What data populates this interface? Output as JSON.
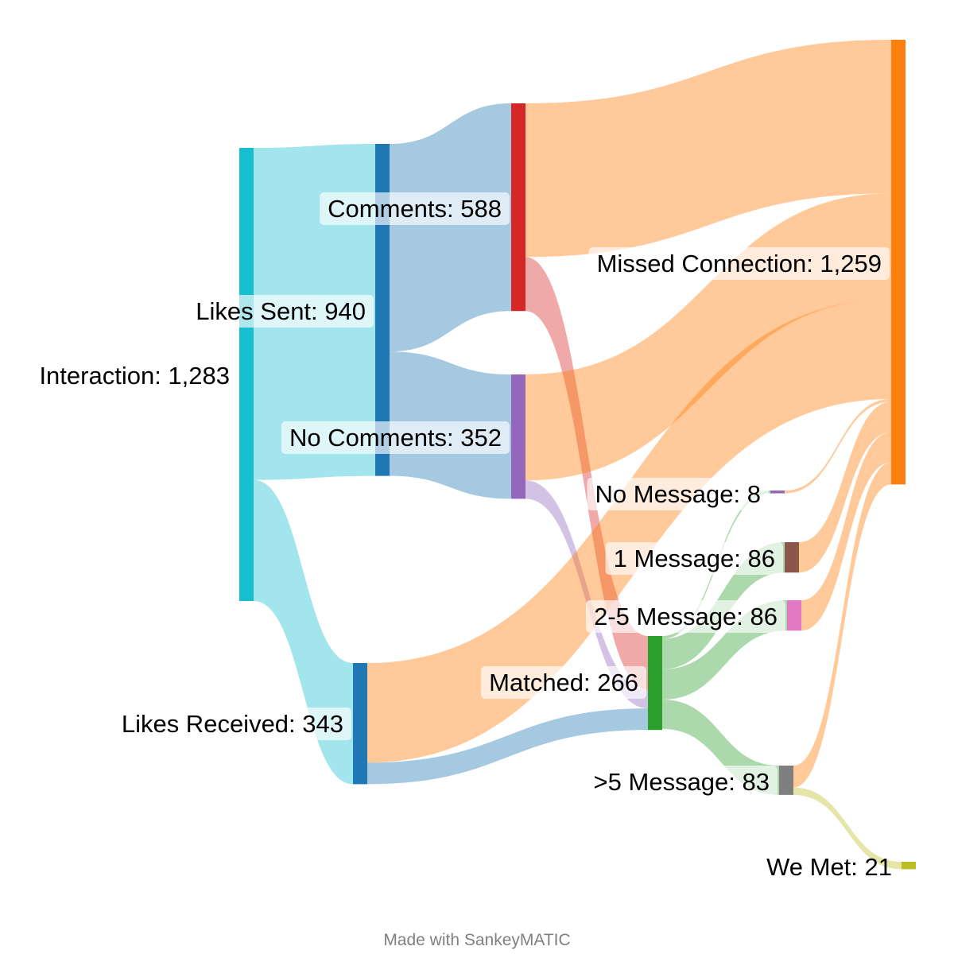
{
  "diagram": {
    "type": "sankey",
    "credit": "Made with SankeyMATIC",
    "nodes": [
      {
        "id": "interaction",
        "label": "Interaction: 1,283",
        "value": 1283,
        "color": "#17becf"
      },
      {
        "id": "likes_sent",
        "label": "Likes Sent: 940",
        "value": 940,
        "color": "#1f77b4"
      },
      {
        "id": "likes_received",
        "label": "Likes Received: 343",
        "value": 343,
        "color": "#1f77b4"
      },
      {
        "id": "comments",
        "label": "Comments: 588",
        "value": 588,
        "color": "#d62728"
      },
      {
        "id": "no_comments",
        "label": "No Comments: 352",
        "value": 352,
        "color": "#9467bd"
      },
      {
        "id": "matched",
        "label": "Matched: 266",
        "value": 266,
        "color": "#2ca02c"
      },
      {
        "id": "missed",
        "label": "Missed Connection: 1,259",
        "value": 1259,
        "color": "#ff7f0e"
      },
      {
        "id": "no_message",
        "label": "No Message: 8",
        "value": 8,
        "color": "#9467bd"
      },
      {
        "id": "one_message",
        "label": "1 Message: 86",
        "value": 86,
        "color": "#8c564b"
      },
      {
        "id": "two_five_message",
        "label": "2-5 Message: 86",
        "value": 86,
        "color": "#e377c2"
      },
      {
        "id": "gt5_message",
        "label": ">5 Message: 83",
        "value": 83,
        "color": "#7f7f7f"
      },
      {
        "id": "we_met",
        "label": "We Met: 21",
        "value": 21,
        "color": "#bcbd22"
      }
    ],
    "flows": [
      {
        "from": "interaction",
        "to": "likes_sent",
        "value": 940
      },
      {
        "from": "interaction",
        "to": "likes_received",
        "value": 343
      },
      {
        "from": "likes_sent",
        "to": "comments",
        "value": 588
      },
      {
        "from": "likes_sent",
        "to": "no_comments",
        "value": 352
      },
      {
        "from": "comments",
        "to": "missed",
        "value": 435
      },
      {
        "from": "comments",
        "to": "matched",
        "value": 153
      },
      {
        "from": "no_comments",
        "to": "missed",
        "value": 300
      },
      {
        "from": "no_comments",
        "to": "matched",
        "value": 52
      },
      {
        "from": "likes_received",
        "to": "missed",
        "value": 282
      },
      {
        "from": "likes_received",
        "to": "matched",
        "value": 61
      },
      {
        "from": "matched",
        "to": "no_message",
        "value": 8
      },
      {
        "from": "matched",
        "to": "one_message",
        "value": 86
      },
      {
        "from": "matched",
        "to": "two_five_message",
        "value": 86
      },
      {
        "from": "matched",
        "to": "gt5_message",
        "value": 83
      },
      {
        "from": "no_message",
        "to": "missed",
        "value": 8
      },
      {
        "from": "one_message",
        "to": "missed",
        "value": 86
      },
      {
        "from": "two_five_message",
        "to": "missed",
        "value": 86
      },
      {
        "from": "gt5_message",
        "to": "missed",
        "value": 62
      },
      {
        "from": "gt5_message",
        "to": "we_met",
        "value": 21
      }
    ]
  }
}
